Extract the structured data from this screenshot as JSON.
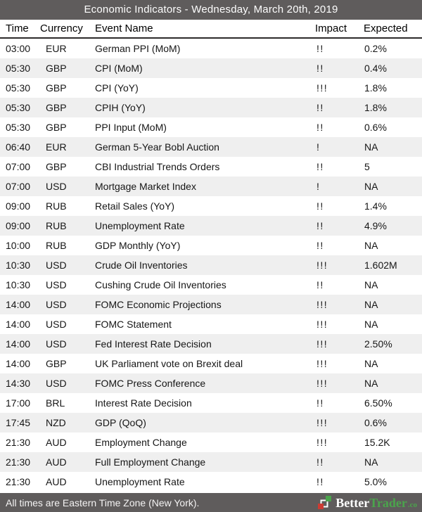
{
  "title_bar": {
    "title": "Economic Indicators - Wednesday, March 20th, 2019"
  },
  "table": {
    "columns": {
      "time": "Time",
      "currency": "Currency",
      "event": "Event Name",
      "impact": "Impact",
      "expected": "Expected"
    },
    "rows": [
      {
        "time": "03:00",
        "currency": "EUR",
        "event": "German PPI (MoM)",
        "impact": "!!",
        "expected": "0.2%"
      },
      {
        "time": "05:30",
        "currency": "GBP",
        "event": "CPI (MoM)",
        "impact": "!!",
        "expected": "0.4%"
      },
      {
        "time": "05:30",
        "currency": "GBP",
        "event": "CPI (YoY)",
        "impact": "!!!",
        "expected": "1.8%"
      },
      {
        "time": "05:30",
        "currency": "GBP",
        "event": "CPIH (YoY)",
        "impact": "!!",
        "expected": "1.8%"
      },
      {
        "time": "05:30",
        "currency": "GBP",
        "event": "PPI Input (MoM)",
        "impact": "!!",
        "expected": "0.6%"
      },
      {
        "time": "06:40",
        "currency": "EUR",
        "event": "German 5-Year Bobl Auction",
        "impact": "!",
        "expected": "NA"
      },
      {
        "time": "07:00",
        "currency": "GBP",
        "event": "CBI Industrial Trends Orders",
        "impact": "!!",
        "expected": "5"
      },
      {
        "time": "07:00",
        "currency": "USD",
        "event": "Mortgage Market Index",
        "impact": "!",
        "expected": "NA"
      },
      {
        "time": "09:00",
        "currency": "RUB",
        "event": "Retail Sales (YoY)",
        "impact": "!!",
        "expected": "1.4%"
      },
      {
        "time": "09:00",
        "currency": "RUB",
        "event": "Unemployment Rate",
        "impact": "!!",
        "expected": "4.9%"
      },
      {
        "time": "10:00",
        "currency": "RUB",
        "event": "GDP Monthly (YoY)",
        "impact": "!!",
        "expected": "NA"
      },
      {
        "time": "10:30",
        "currency": "USD",
        "event": "Crude Oil Inventories",
        "impact": "!!!",
        "expected": "1.602M"
      },
      {
        "time": "10:30",
        "currency": "USD",
        "event": "Cushing Crude Oil Inventories",
        "impact": "!!",
        "expected": "NA"
      },
      {
        "time": "14:00",
        "currency": "USD",
        "event": "FOMC Economic Projections",
        "impact": "!!!",
        "expected": "NA"
      },
      {
        "time": "14:00",
        "currency": "USD",
        "event": "FOMC Statement",
        "impact": "!!!",
        "expected": "NA"
      },
      {
        "time": "14:00",
        "currency": "USD",
        "event": "Fed Interest Rate Decision",
        "impact": "!!!",
        "expected": "2.50%"
      },
      {
        "time": "14:00",
        "currency": "GBP",
        "event": "UK Parliament vote on Brexit deal",
        "impact": "!!!",
        "expected": "NA"
      },
      {
        "time": "14:30",
        "currency": "USD",
        "event": "FOMC Press Conference",
        "impact": "!!!",
        "expected": "NA"
      },
      {
        "time": "17:00",
        "currency": "BRL",
        "event": "Interest Rate Decision",
        "impact": "!!",
        "expected": "6.50%"
      },
      {
        "time": "17:45",
        "currency": "NZD",
        "event": "GDP (QoQ)",
        "impact": "!!!",
        "expected": "0.6%"
      },
      {
        "time": "21:30",
        "currency": "AUD",
        "event": "Employment Change",
        "impact": "!!!",
        "expected": "15.2K"
      },
      {
        "time": "21:30",
        "currency": "AUD",
        "event": "Full Employment Change",
        "impact": "!!",
        "expected": "NA"
      },
      {
        "time": "21:30",
        "currency": "AUD",
        "event": "Unemployment Rate",
        "impact": "!!",
        "expected": "5.0%"
      }
    ]
  },
  "footer": {
    "note": "All times are Eastern Time Zone (New York).",
    "logo": {
      "better": "Better",
      "trader": "Trader",
      "tld": ".co"
    }
  },
  "colors": {
    "bar_bg": "#5f5c5c",
    "row_alt_bg": "#efefef",
    "header_rule": "#2d2b2b",
    "logo_green": "#4ba44c",
    "logo_red": "#cc3b33"
  }
}
